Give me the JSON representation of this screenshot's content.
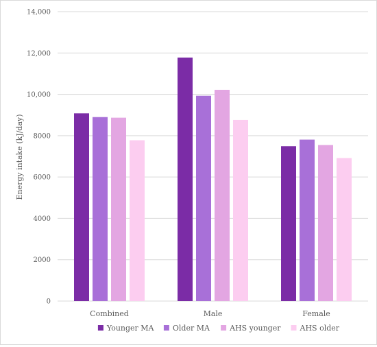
{
  "chart_data": {
    "type": "bar",
    "title": "",
    "xlabel": "",
    "ylabel": "Energy intake (kJ/day)",
    "categories": [
      "Combined",
      "Male",
      "Female"
    ],
    "yticks": [
      "0",
      "2000",
      "4000",
      "6000",
      "8000",
      "10,000",
      "12,000",
      "14,000"
    ],
    "ylim": [
      0,
      14000
    ],
    "grid": true,
    "legend_position": "bottom",
    "series": [
      {
        "name": "Younger MA",
        "color": "#7b2ca6",
        "values": [
          9080,
          11780,
          7490
        ]
      },
      {
        "name": "Older MA",
        "color": "#a870d8",
        "values": [
          8900,
          9930,
          7810
        ]
      },
      {
        "name": "AHS younger",
        "color": "#e3a6e2",
        "values": [
          8870,
          10220,
          7550
        ]
      },
      {
        "name": "AHS older",
        "color": "#fccdf0",
        "values": [
          7780,
          8760,
          6920
        ]
      }
    ]
  }
}
